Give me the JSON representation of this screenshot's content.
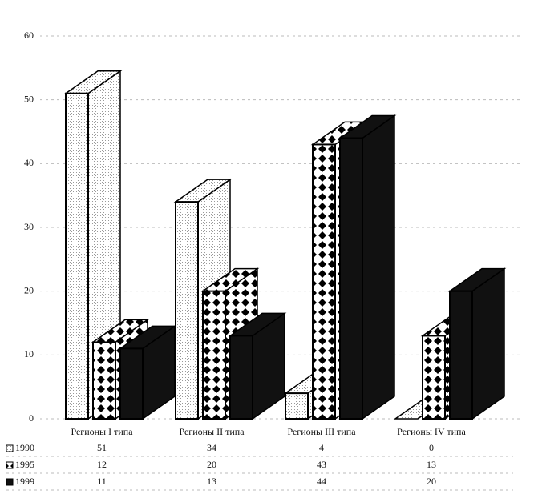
{
  "chart_data": {
    "type": "bar3d",
    "categories": [
      "Регионы I типа",
      "Регионы II типа",
      "Регионы III типа",
      "Регионы IV типа"
    ],
    "series": [
      {
        "name": "1990",
        "color": "#9a9a9a",
        "values": [
          51,
          34,
          4,
          0
        ]
      },
      {
        "name": "1995",
        "color": "#000000",
        "values": [
          12,
          20,
          43,
          13
        ]
      },
      {
        "name": "1999",
        "color": "#111111",
        "values": [
          11,
          13,
          44,
          20
        ]
      }
    ],
    "ylim": [
      0,
      60
    ],
    "yticks": [
      0,
      10,
      20,
      30,
      40,
      50,
      60
    ],
    "grid": true
  }
}
